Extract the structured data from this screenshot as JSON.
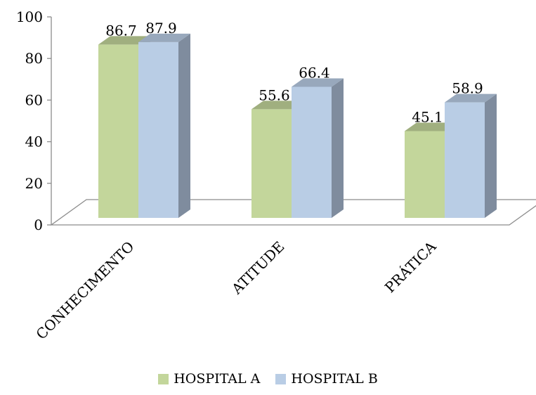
{
  "chart_data": {
    "type": "bar",
    "title": "",
    "xlabel": "",
    "ylabel": "",
    "categories": [
      "CONHECIMENTO",
      "ATITUDE",
      "PRÁTICA"
    ],
    "series": [
      {
        "name": "HOSPITAL A",
        "values": [
          86.7,
          55.6,
          45.1
        ],
        "color": "#c3d69b"
      },
      {
        "name": "HOSPITAL B",
        "values": [
          87.9,
          66.4,
          58.9
        ],
        "color": "#b9cde5"
      }
    ],
    "ylim": [
      0,
      100
    ],
    "yticks": [
      "0",
      "20",
      "40",
      "60",
      "80",
      "100"
    ],
    "data_labels": [
      "86.7",
      "55.6",
      "45.1",
      "87.9",
      "66.4",
      "58.9"
    ],
    "grid": false,
    "legend_position": "bottom",
    "style": "3d-column"
  }
}
